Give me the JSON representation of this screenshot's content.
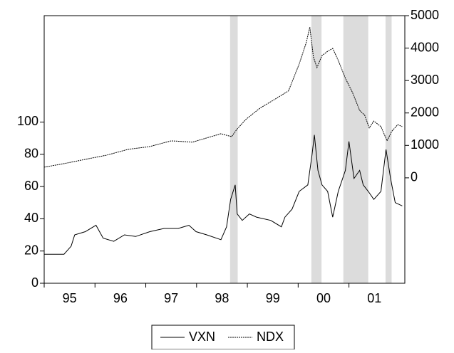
{
  "chart_data": {
    "type": "line",
    "xlim": [
      1995,
      2002.1
    ],
    "xticks": [
      {
        "value": 1995,
        "label": "95"
      },
      {
        "value": 1996,
        "label": "96"
      },
      {
        "value": 1997,
        "label": "97"
      },
      {
        "value": 1998,
        "label": "98"
      },
      {
        "value": 1999,
        "label": "99"
      },
      {
        "value": 2000,
        "label": "00"
      },
      {
        "value": 2001,
        "label": "01"
      }
    ],
    "ylim": [
      0,
      166
    ],
    "yticks": [
      0,
      20,
      40,
      60,
      80,
      100
    ],
    "y2lim": [
      -3250,
      5000
    ],
    "y2ticks": [
      0,
      1000,
      2000,
      3000,
      4000,
      5000
    ],
    "shaded_periods": [
      [
        1998.66,
        1998.81
      ],
      [
        2000.26,
        2000.46
      ],
      [
        2000.89,
        2001.38
      ],
      [
        2001.72,
        2001.84
      ]
    ],
    "shade_color": "#dcdcdc",
    "legend": "bottom",
    "series": [
      {
        "name": "VXN",
        "color": "#000000",
        "line_style": "solid",
        "x": [
          1995.0,
          1995.39,
          1995.53,
          1995.6,
          1995.81,
          1996.02,
          1996.16,
          1996.37,
          1996.58,
          1996.8,
          1997.08,
          1997.36,
          1997.64,
          1997.85,
          1997.99,
          1998.2,
          1998.48,
          1998.59,
          1998.67,
          1998.76,
          1998.8,
          1998.9,
          1999.04,
          1999.18,
          1999.46,
          1999.67,
          1999.74,
          1999.88,
          2000.02,
          2000.19,
          2000.27,
          2000.32,
          2000.39,
          2000.47,
          2000.58,
          2000.68,
          2000.79,
          2000.93,
          2001.0,
          2001.1,
          2001.21,
          2001.28,
          2001.38,
          2001.49,
          2001.63,
          2001.73,
          2001.82,
          2001.91,
          2002.05
        ],
        "values": [
          18,
          18,
          23,
          30,
          32,
          36,
          28,
          26,
          30,
          29,
          32,
          34,
          34,
          36,
          32,
          30,
          27,
          35,
          52,
          61,
          43,
          39,
          43,
          41,
          39,
          35,
          41,
          46,
          57,
          61,
          79,
          92,
          70,
          61,
          57,
          41,
          57,
          70,
          88,
          65,
          70,
          61,
          57,
          52,
          57,
          83,
          65,
          50,
          48
        ]
      },
      {
        "name": "NDX",
        "color": "#000000",
        "line_style": "dashed",
        "axis": "y2",
        "x": [
          1995.0,
          1995.39,
          1995.81,
          1996.23,
          1996.65,
          1997.08,
          1997.5,
          1997.92,
          1998.2,
          1998.48,
          1998.69,
          1998.79,
          1998.97,
          1999.25,
          1999.53,
          1999.81,
          2000.02,
          2000.16,
          2000.23,
          2000.3,
          2000.37,
          2000.47,
          2000.58,
          2000.68,
          2000.79,
          2000.93,
          2001.07,
          2001.21,
          2001.31,
          2001.4,
          2001.49,
          2001.63,
          2001.75,
          2001.84,
          2001.96,
          2002.05
        ],
        "values": [
          329,
          439,
          570,
          700,
          877,
          965,
          1140,
          1100,
          1230,
          1360,
          1270,
          1490,
          1800,
          2150,
          2410,
          2680,
          3510,
          4170,
          4650,
          3730,
          3400,
          3770,
          3900,
          3990,
          3620,
          3070,
          2630,
          2080,
          1930,
          1540,
          1750,
          1580,
          1140,
          1430,
          1640,
          1580
        ]
      }
    ]
  }
}
